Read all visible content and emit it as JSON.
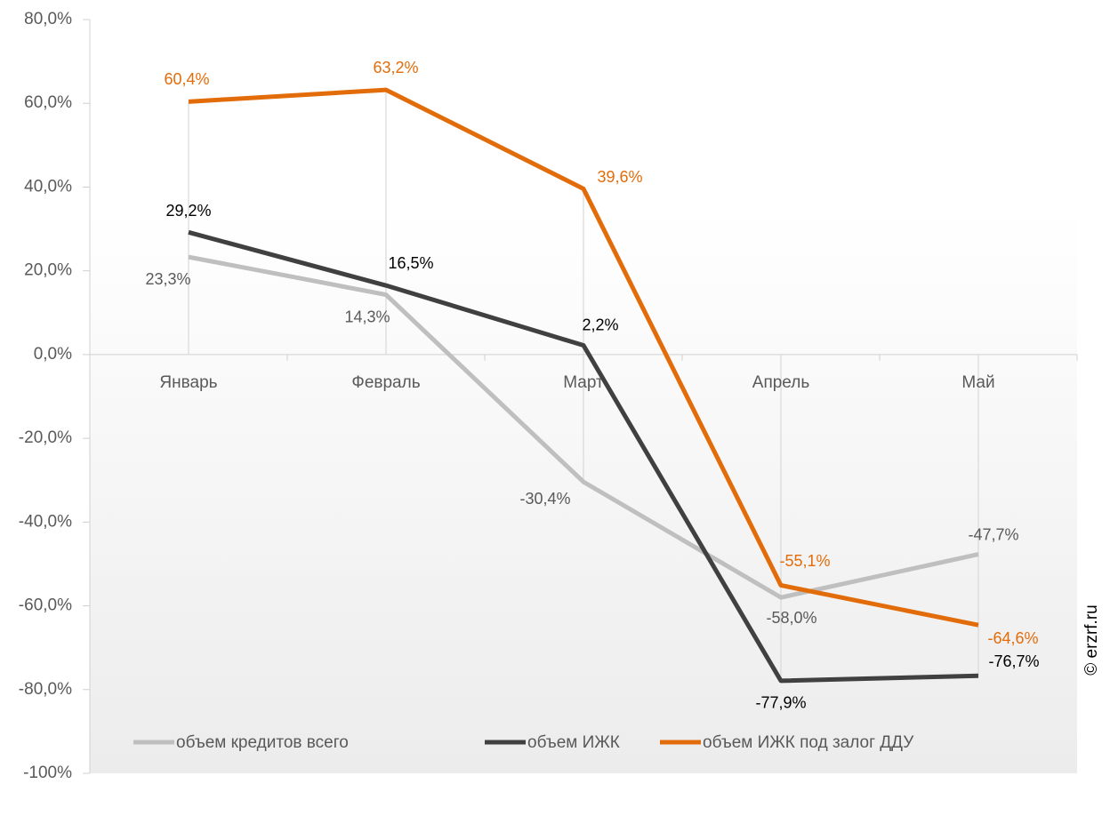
{
  "chart_data": {
    "type": "line",
    "categories": [
      "Январь",
      "Февраль",
      "Март",
      "Апрель",
      "Май"
    ],
    "series": [
      {
        "name": "объем кредитов всего",
        "color": "#bfbfbf",
        "values": [
          23.3,
          14.3,
          -30.4,
          -58.0,
          -47.7
        ],
        "value_labels": [
          "23,3%",
          "14,3%",
          "-30,4%",
          "-58,0%",
          "-47,7%"
        ]
      },
      {
        "name": "объем ИЖК",
        "color": "#404040",
        "values": [
          29.2,
          16.5,
          2.2,
          -77.9,
          -76.7
        ],
        "value_labels": [
          "29,2%",
          "16,5%",
          "2,2%",
          "-77,9%",
          "-76,7%"
        ]
      },
      {
        "name": "объем ИЖК под залог ДДУ",
        "color": "#e36c0a",
        "values": [
          60.4,
          63.2,
          39.6,
          -55.1,
          -64.6
        ],
        "value_labels": [
          "60,4%",
          "63,2%",
          "39,6%",
          "-55,1%",
          "-64,6%"
        ]
      }
    ],
    "ylim": [
      -100,
      80
    ],
    "yticks": [
      {
        "value": 80,
        "label": "80,0%"
      },
      {
        "value": 60,
        "label": "60,0%"
      },
      {
        "value": 40,
        "label": "40,0%"
      },
      {
        "value": 20,
        "label": "20,0%"
      },
      {
        "value": 0,
        "label": "0,0%"
      },
      {
        "value": -20,
        "label": "-20,0%"
      },
      {
        "value": -40,
        "label": "-40,0%"
      },
      {
        "value": -60,
        "label": "-60,0%"
      },
      {
        "value": -80,
        "label": "-80,0%"
      },
      {
        "value": -100,
        "label": "-100%"
      }
    ],
    "legend": "bottom",
    "watermark": "© erzrf.ru"
  }
}
